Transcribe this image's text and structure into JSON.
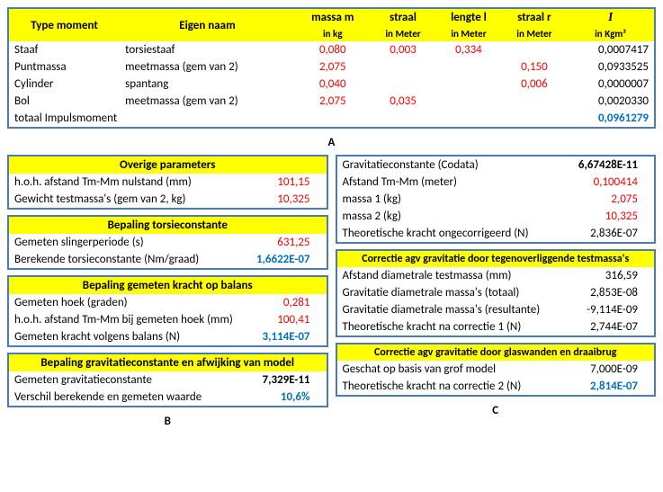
{
  "tableA": {
    "headers": {
      "c1": "Type moment",
      "c2": "Eigen naam",
      "c3a": "massa m",
      "c3b": "in kg",
      "c4a": "straal",
      "c4b": "in Meter",
      "c5a": "lengte l",
      "c5b": "in Meter",
      "c6a": "straal r",
      "c6b": "in Meter",
      "c7a": "I",
      "c7b": "in Kgm²"
    },
    "rows": [
      {
        "type": "Staaf",
        "naam": "torsiestaaf",
        "m": "0,080",
        "straal": "0,003",
        "l": "0,334",
        "r": "",
        "I": "0,0007417"
      },
      {
        "type": "Puntmassa",
        "naam": "meetmassa (gem van 2)",
        "m": "2,075",
        "straal": "",
        "l": "",
        "r": "0,150",
        "I": "0,0933525"
      },
      {
        "type": "Cylinder",
        "naam": "spantang",
        "m": "0,040",
        "straal": "",
        "l": "",
        "r": "0,006",
        "I": "0,0000007"
      },
      {
        "type": "Bol",
        "naam": "meetmassa (gem van 2)",
        "m": "2,075",
        "straal": "0,035",
        "l": "",
        "r": "",
        "I": "0,0020330"
      }
    ],
    "total_label": "totaal Impulsmoment",
    "total_value": "0,0961279",
    "section_label": "A"
  },
  "colB": {
    "box1": {
      "title": "Overige parameters",
      "rows": [
        {
          "k": "h.o.h. afstand Tm-Mm nulstand (mm)",
          "v": "101,15",
          "cls": "red"
        },
        {
          "k": "Gewicht testmassa's (gem van 2, kg)",
          "v": "10,325",
          "cls": "red"
        }
      ]
    },
    "box2": {
      "title": "Bepaling torsieconstante",
      "rows": [
        {
          "k": "Gemeten slingerperiode (s)",
          "v": "631,25",
          "cls": "red"
        },
        {
          "k": "Berekende torsieconstante (Nm/graad)",
          "v": "1,6622E-07",
          "cls": "blue"
        }
      ]
    },
    "box3": {
      "title": "Bepaling gemeten kracht op balans",
      "rows": [
        {
          "k": "Gemeten hoek (graden)",
          "v": "0,281",
          "cls": "red"
        },
        {
          "k": "h.o.h. afstand Tm-Mm bij gemeten hoek (mm)",
          "v": "100,41",
          "cls": "red"
        },
        {
          "k": "Gemeten kracht volgens balans (N)",
          "v": "3,114E-07",
          "cls": "blue"
        }
      ]
    },
    "box4": {
      "title": "Bepaling gravitatieconstante en afwijking van model",
      "rows": [
        {
          "k": "Gemeten gravitatieconstante",
          "v": "7,329E-11",
          "cls": "bold"
        },
        {
          "k": "Verschil berekende en gemeten waarde",
          "v": "10,6%",
          "cls": "blue"
        }
      ]
    },
    "section_label": "B"
  },
  "colC": {
    "box1": {
      "rows": [
        {
          "k": "Gravitatieconstante (Codata)",
          "v": "6,67428E-11",
          "cls": "bold"
        },
        {
          "k": "Afstand Tm-Mm (meter)",
          "v": "0,100414",
          "cls": "red"
        },
        {
          "k": "massa 1 (kg)",
          "v": "2,075",
          "cls": "red"
        },
        {
          "k": "massa 2 (kg)",
          "v": "10,325",
          "cls": "red"
        },
        {
          "k": "Theoretische kracht ongecorrigeerd (N)",
          "v": "2,836E-07",
          "cls": ""
        }
      ]
    },
    "box2": {
      "title": "Correctie agv gravitatie door tegenoverliggende testmassa's",
      "rows": [
        {
          "k": "Afstand diametrale testmassa (mm)",
          "v": "316,59",
          "cls": ""
        },
        {
          "k": "Gravitatie diametrale massa's (totaal)",
          "v": "2,853E-08",
          "cls": ""
        },
        {
          "k": "Gravitatie diametrale massa's (resultante)",
          "v": "-9,114E-09",
          "cls": ""
        },
        {
          "k": "Theoretische kracht na correctie 1 (N)",
          "v": "2,744E-07",
          "cls": ""
        }
      ]
    },
    "box3": {
      "title": "Correctie agv gravitatie door glaswanden en draaibrug",
      "rows": [
        {
          "k": "Geschat op basis van grof model",
          "v": "7,000E-09",
          "cls": ""
        },
        {
          "k": "Theoretische kracht na correctie 2 (N)",
          "v": "2,814E-07",
          "cls": "blue"
        }
      ]
    },
    "section_label": "C"
  }
}
